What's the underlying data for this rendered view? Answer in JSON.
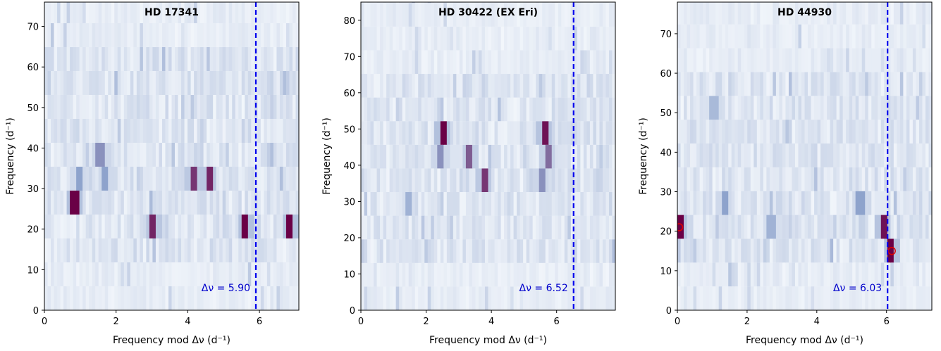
{
  "chart_data": [
    {
      "type": "heatmap",
      "title": "HD 17341",
      "xlabel": "Frequency mod Δν (d⁻¹)",
      "ylabel": "Frequency (d⁻¹)",
      "xlim": [
        0,
        7.1
      ],
      "ylim": [
        0,
        76
      ],
      "x_ticks": [
        "0",
        "2",
        "4",
        "6"
      ],
      "y_ticks": [
        "0",
        "10",
        "20",
        "30",
        "40",
        "50",
        "60",
        "70"
      ],
      "delta_nu": 5.9,
      "annotation": "Δν = 5.90",
      "strong_features": [
        {
          "x": 0.85,
          "y": 26.5,
          "strength": 1.0
        },
        {
          "x": 3.05,
          "y": 20.7,
          "strength": 0.9
        },
        {
          "x": 5.6,
          "y": 20.7,
          "strength": 1.0
        },
        {
          "x": 6.85,
          "y": 20.7,
          "strength": 1.0
        },
        {
          "x": 4.15,
          "y": 32.5,
          "strength": 0.85
        },
        {
          "x": 4.6,
          "y": 32.5,
          "strength": 0.9
        },
        {
          "x": 1.55,
          "y": 38.0,
          "strength": 0.6
        },
        {
          "x": 1.7,
          "y": 32.5,
          "strength": 0.55
        },
        {
          "x": 0.95,
          "y": 32.5,
          "strength": 0.55
        }
      ],
      "circled_points": []
    },
    {
      "type": "heatmap",
      "title": "HD 30422 (EX Eri)",
      "xlabel": "Frequency mod Δν (d⁻¹)",
      "ylabel": "Frequency (d⁻¹)",
      "xlim": [
        0,
        7.8
      ],
      "ylim": [
        0,
        85
      ],
      "x_ticks": [
        "0",
        "2",
        "4",
        "6"
      ],
      "y_ticks": [
        "0",
        "10",
        "20",
        "30",
        "40",
        "50",
        "60",
        "70",
        "80"
      ],
      "delta_nu": 6.52,
      "annotation": "Δν = 6.52",
      "strong_features": [
        {
          "x": 2.5,
          "y": 48.5,
          "strength": 1.0
        },
        {
          "x": 5.65,
          "y": 48.5,
          "strength": 0.95
        },
        {
          "x": 3.35,
          "y": 42.0,
          "strength": 0.75
        },
        {
          "x": 5.75,
          "y": 42.0,
          "strength": 0.7
        },
        {
          "x": 3.8,
          "y": 36.0,
          "strength": 0.85
        },
        {
          "x": 5.55,
          "y": 36.0,
          "strength": 0.6
        },
        {
          "x": 2.45,
          "y": 42.0,
          "strength": 0.6
        },
        {
          "x": 1.5,
          "y": 30.0,
          "strength": 0.45
        }
      ],
      "circled_points": []
    },
    {
      "type": "heatmap",
      "title": "HD 44930",
      "xlabel": "Frequency mod Δν (d⁻¹)",
      "ylabel": "Frequency (d⁻¹)",
      "xlim": [
        0,
        7.3
      ],
      "ylim": [
        0,
        78
      ],
      "x_ticks": [
        "0",
        "2",
        "4",
        "6"
      ],
      "y_ticks": [
        "0",
        "10",
        "20",
        "30",
        "40",
        "50",
        "60",
        "70"
      ],
      "delta_nu": 6.03,
      "annotation": "Δν = 6.03",
      "strong_features": [
        {
          "x": 0.05,
          "y": 21.0,
          "strength": 1.0
        },
        {
          "x": 5.9,
          "y": 21.0,
          "strength": 0.95
        },
        {
          "x": 6.15,
          "y": 15.0,
          "strength": 1.0
        },
        {
          "x": 1.35,
          "y": 27.0,
          "strength": 0.55
        },
        {
          "x": 5.25,
          "y": 27.0,
          "strength": 0.55
        },
        {
          "x": 2.7,
          "y": 21.0,
          "strength": 0.45
        },
        {
          "x": 1.05,
          "y": 51.0,
          "strength": 0.4
        }
      ],
      "circled_points": [
        {
          "x": 0.05,
          "y": 21.0
        },
        {
          "x": 6.15,
          "y": 15.0
        }
      ]
    }
  ],
  "colors": {
    "colormap_low": "#f2f6fb",
    "colormap_mid": "#8ea3cc",
    "colormap_high": "#6a0046",
    "delta_nu_line": "#0000ee",
    "annotation": "#0000cc",
    "circle": "#dd0000"
  }
}
